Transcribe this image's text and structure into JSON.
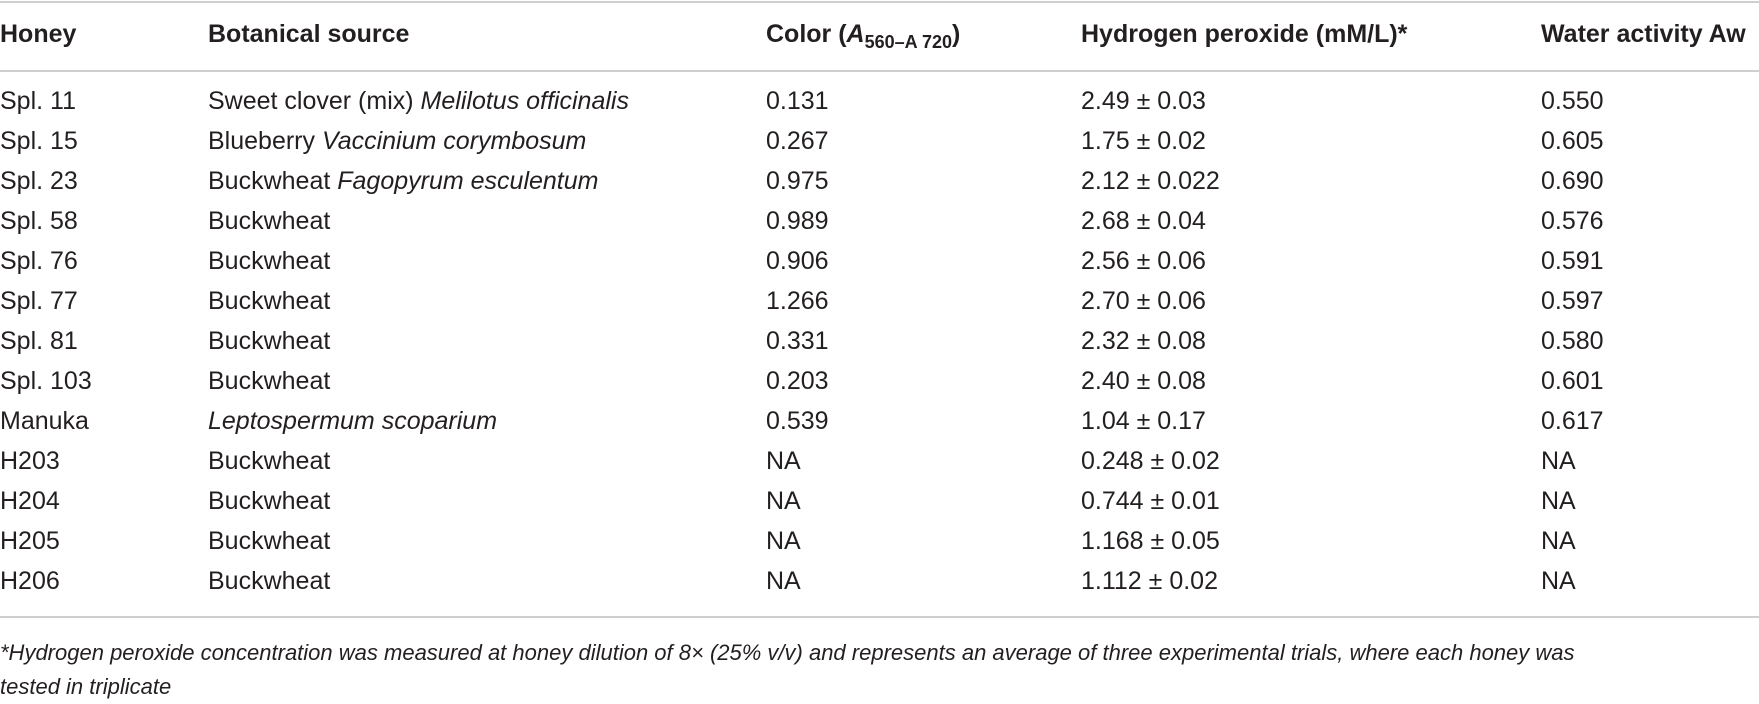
{
  "table": {
    "headers": {
      "honey": "Honey",
      "source": "Botanical source",
      "color_prefix": "Color (",
      "color_a": "A",
      "color_sub": "560–A 720",
      "color_suffix": ")",
      "h2o2": "Hydrogen peroxide (mM/L)*",
      "aw": "Water activity Aw"
    },
    "rows": [
      {
        "honey": "Spl. 11",
        "source_plain": "Sweet clover (mix) ",
        "source_italic": "Melilotus officinalis",
        "color": "0.131",
        "h2o2": "2.49 ± 0.03",
        "aw": "0.550"
      },
      {
        "honey": "Spl. 15",
        "source_plain": "Blueberry ",
        "source_italic": "Vaccinium corymbosum",
        "color": "0.267",
        "h2o2": "1.75 ± 0.02",
        "aw": "0.605"
      },
      {
        "honey": "Spl. 23",
        "source_plain": "Buckwheat ",
        "source_italic": "Fagopyrum esculentum",
        "color": "0.975",
        "h2o2": "2.12 ± 0.022",
        "aw": "0.690"
      },
      {
        "honey": "Spl. 58",
        "source_plain": "Buckwheat",
        "source_italic": "",
        "color": "0.989",
        "h2o2": "2.68 ± 0.04",
        "aw": "0.576"
      },
      {
        "honey": "Spl. 76",
        "source_plain": "Buckwheat",
        "source_italic": "",
        "color": "0.906",
        "h2o2": "2.56 ± 0.06",
        "aw": "0.591"
      },
      {
        "honey": "Spl. 77",
        "source_plain": "Buckwheat",
        "source_italic": "",
        "color": "1.266",
        "h2o2": "2.70 ± 0.06",
        "aw": "0.597"
      },
      {
        "honey": "Spl. 81",
        "source_plain": "Buckwheat",
        "source_italic": "",
        "color": "0.331",
        "h2o2": "2.32 ± 0.08",
        "aw": "0.580"
      },
      {
        "honey": "Spl. 103",
        "source_plain": "Buckwheat",
        "source_italic": "",
        "color": "0.203",
        "h2o2": "2.40 ± 0.08",
        "aw": "0.601"
      },
      {
        "honey": "Manuka",
        "source_plain": "",
        "source_italic": "Leptospermum scoparium",
        "color": "0.539",
        "h2o2": "1.04 ± 0.17",
        "aw": "0.617"
      },
      {
        "honey": "H203",
        "source_plain": "Buckwheat",
        "source_italic": "",
        "color": "NA",
        "h2o2": "0.248 ± 0.02",
        "aw": "NA"
      },
      {
        "honey": "H204",
        "source_plain": "Buckwheat",
        "source_italic": "",
        "color": "NA",
        "h2o2": "0.744 ± 0.01",
        "aw": "NA"
      },
      {
        "honey": "H205",
        "source_plain": "Buckwheat",
        "source_italic": "",
        "color": "NA",
        "h2o2": "1.168 ± 0.05",
        "aw": "NA"
      },
      {
        "honey": "H206",
        "source_plain": "Buckwheat",
        "source_italic": "",
        "color": "NA",
        "h2o2": "1.112 ± 0.02",
        "aw": "NA"
      }
    ]
  },
  "footnote": {
    "line1": "*Hydrogen peroxide concentration was measured at honey dilution of 8× (25% v/v) and represents an average of three experimental trials, where each honey was",
    "line2": "tested in triplicate"
  }
}
